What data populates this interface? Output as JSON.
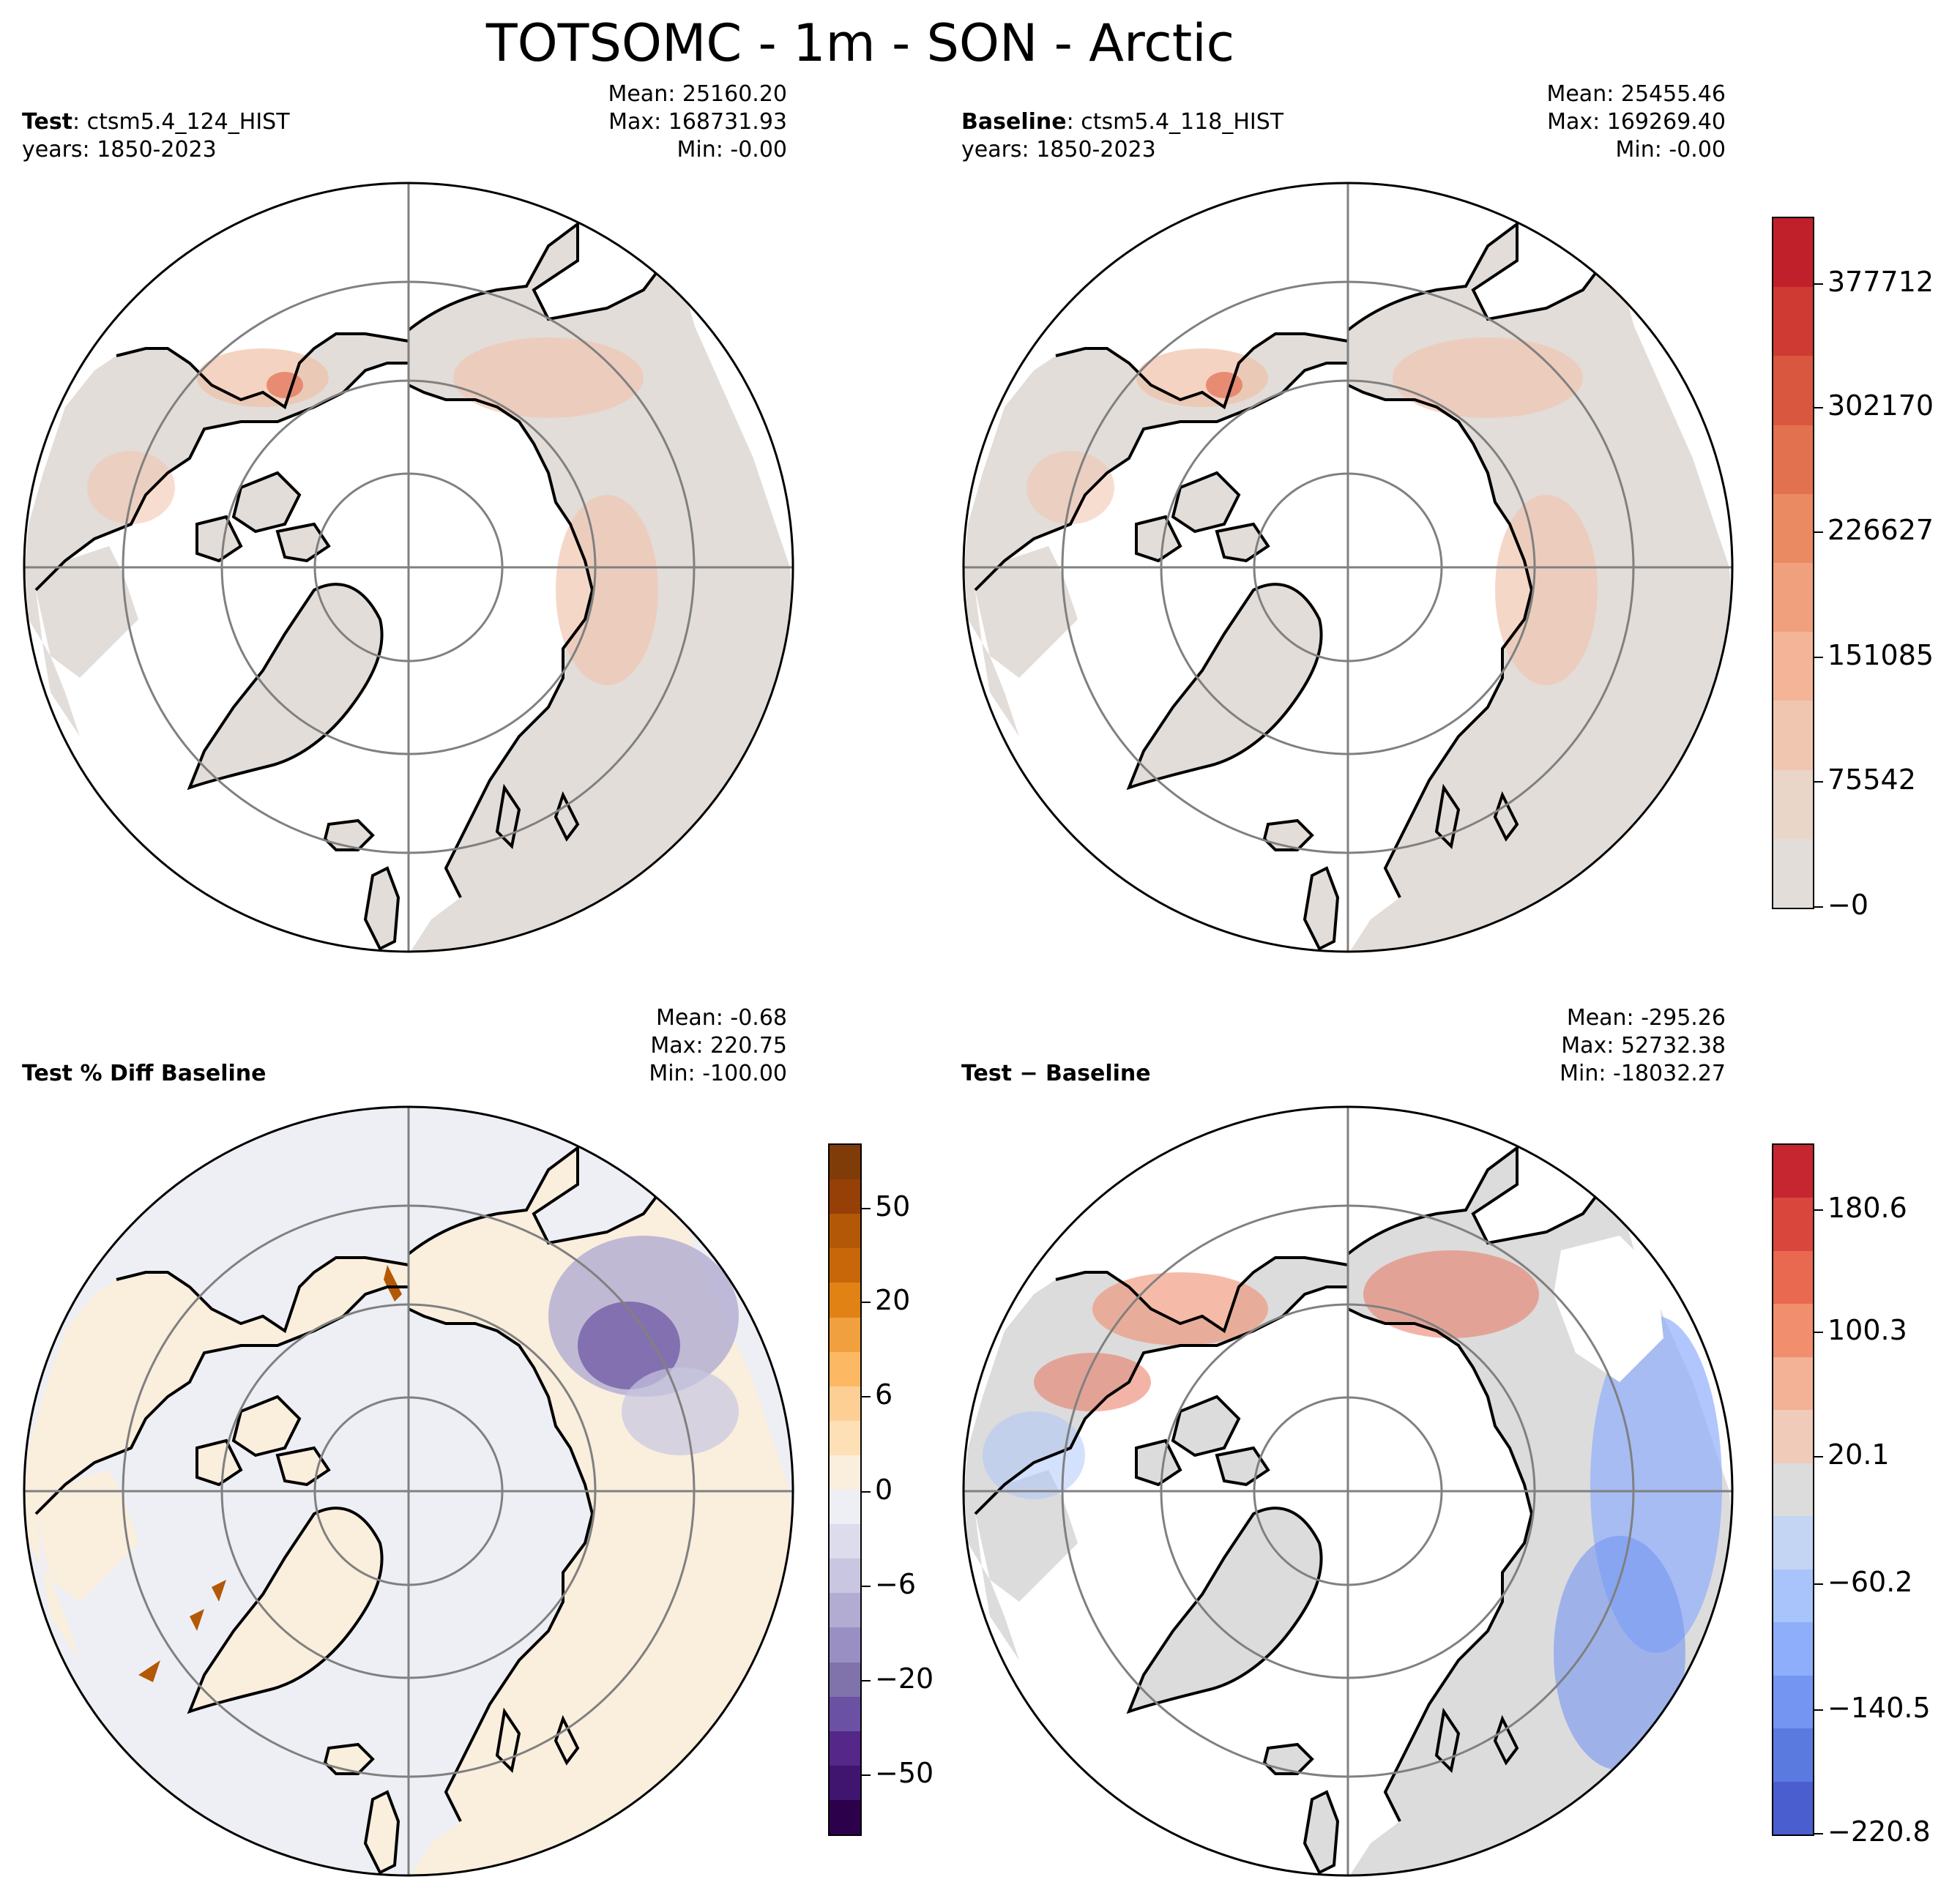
{
  "figure": {
    "title": "TOTSOMC - 1m - SON - Arctic"
  },
  "panels": {
    "test": {
      "label_bold": "Test",
      "label_rest": ": ctsm5.4_124_HIST",
      "years": "years: 1850-2023",
      "mean": "Mean: 25160.20",
      "max": "Max: 168731.93",
      "min": "Min: -0.00"
    },
    "baseline": {
      "label_bold": "Baseline",
      "label_rest": ": ctsm5.4_118_HIST",
      "years": "years: 1850-2023",
      "mean": "Mean: 25455.46",
      "max": "Max: 169269.40",
      "min": "Min: -0.00"
    },
    "pctdiff": {
      "label": "Test % Diff Baseline",
      "mean": "Mean: -0.68",
      "max": "Max: 220.75",
      "min": "Min: -100.00"
    },
    "diff": {
      "label": "Test − Baseline",
      "mean": "Mean: -295.26",
      "max": "Max: 52732.38",
      "min": "Min: -18032.27"
    }
  },
  "colorbars": {
    "abs": {
      "ticks": [
        "377712",
        "302170",
        "226627",
        "151085",
        "75542",
        "−0"
      ],
      "colors": [
        "#c0202a",
        "#cf3a33",
        "#d9573f",
        "#e2714f",
        "#ea8a63",
        "#f0a07c",
        "#f3b497",
        "#f1c6b0",
        "#ead5c9",
        "#e2ddd9"
      ]
    },
    "pct": {
      "ticks": [
        "50",
        "20",
        "6",
        "0",
        "−6",
        "−20",
        "−50"
      ],
      "colors": [
        "#7f3b08",
        "#963f07",
        "#b35806",
        "#c8660a",
        "#e08214",
        "#f1a040",
        "#fdb863",
        "#fdcf95",
        "#fee0b6",
        "#faeedd",
        "#eeeff4",
        "#dcdcec",
        "#c8c6e0",
        "#b2abd2",
        "#9a8fc3",
        "#8073ac",
        "#6a51a3",
        "#542788",
        "#3f1570",
        "#2d004b"
      ]
    },
    "diff": {
      "ticks": [
        "180.6",
        "100.3",
        "20.1",
        "−60.2",
        "−140.5",
        "−220.8"
      ],
      "colors": [
        "#c6262f",
        "#d9463c",
        "#e8694f",
        "#f08e6e",
        "#f3b195",
        "#f0cbb9",
        "#dcdcdc",
        "#c4d5f3",
        "#a9c4fb",
        "#8eaefc",
        "#7496f2",
        "#5a7ae0",
        "#4a5ed0"
      ]
    }
  }
}
